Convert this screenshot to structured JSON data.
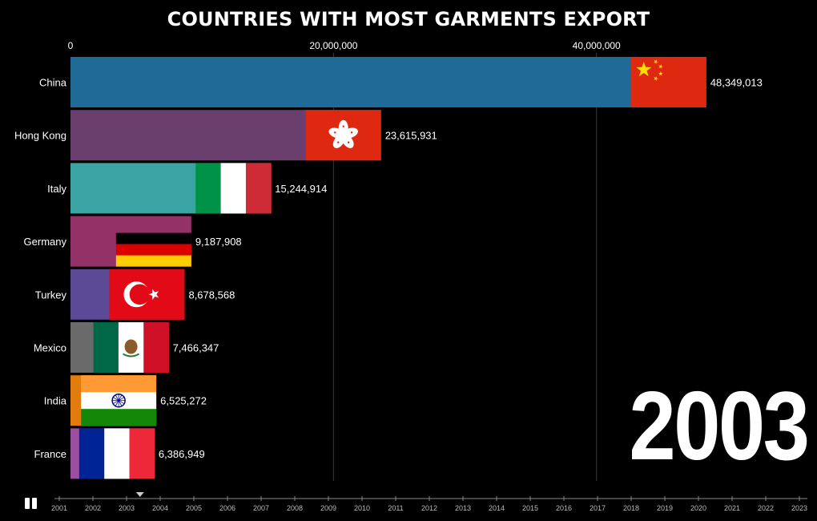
{
  "chart_data": {
    "type": "bar",
    "orientation": "horizontal",
    "title": "COUNTRIES WITH MOST GARMENTS EXPORT",
    "year": "2003",
    "xlim": [
      0,
      52000000
    ],
    "xticks": [
      0,
      20000000,
      40000000
    ],
    "xtick_labels": [
      "0",
      "20,000,000",
      "40,000,000"
    ],
    "grid": true,
    "categories": [
      "China",
      "Hong Kong",
      "Italy",
      "Germany",
      "Turkey",
      "Mexico",
      "India",
      "France"
    ],
    "values": [
      48349013,
      23615931,
      15244914,
      9187908,
      8678568,
      7466347,
      6525272,
      6386949
    ],
    "value_labels": [
      "48,349,013",
      "23,615,931",
      "15,244,914",
      "9,187,908",
      "8,678,568",
      "7,466,347",
      "6,525,272",
      "6,386,949"
    ],
    "bar_colors": [
      "#1f6a96",
      "#6a3f6e",
      "#3aa4a2",
      "#943166",
      "#5b4a96",
      "#6a6a6a",
      "#e07b0c",
      "#9a4fa0"
    ],
    "flags": [
      "china-flag",
      "hong-kong-flag",
      "italy-flag",
      "germany-flag",
      "turkey-flag",
      "mexico-flag",
      "india-flag",
      "france-flag"
    ]
  },
  "controls": {
    "play_pause_icon": "pause-icon",
    "timeline_years": [
      "2001",
      "2002",
      "2003",
      "2004",
      "2005",
      "2006",
      "2007",
      "2008",
      "2009",
      "2010",
      "2011",
      "2012",
      "2013",
      "2014",
      "2015",
      "2016",
      "2017",
      "2018",
      "2019",
      "2020",
      "2021",
      "2022",
      "2023"
    ],
    "timeline_position": 2003.4
  }
}
